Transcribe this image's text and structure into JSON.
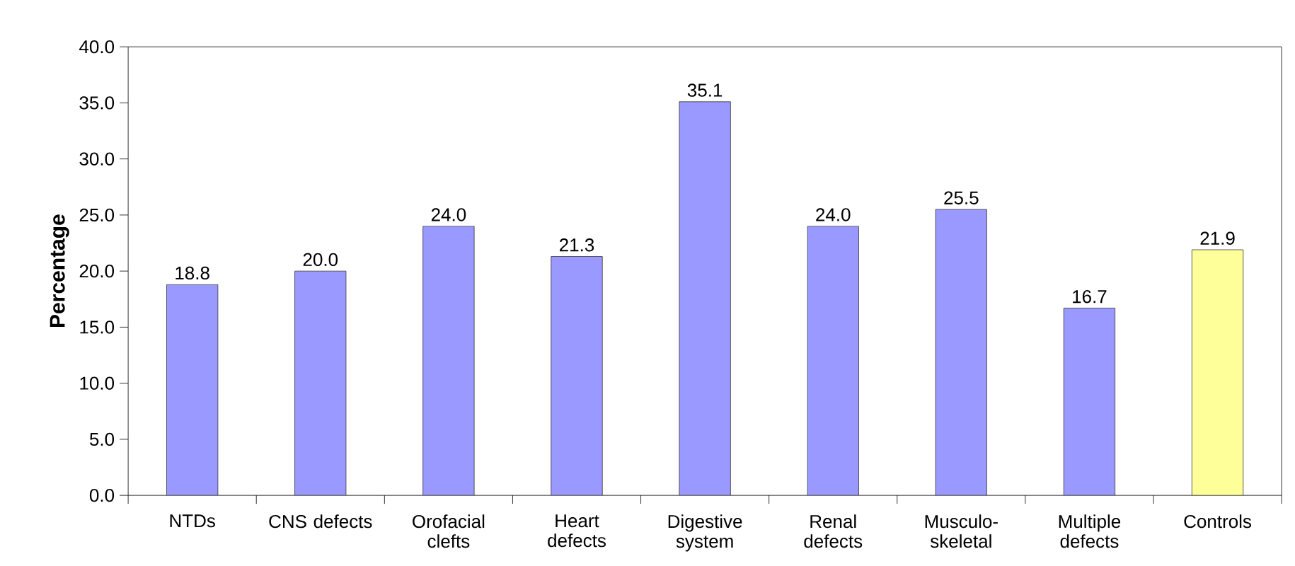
{
  "chart_data": {
    "type": "bar",
    "ylabel": "Percentage",
    "categories": [
      "NTDs",
      "CNS defects",
      "Orofacial clefts",
      "Heart defects",
      "Digestive system",
      "Renal defects",
      "Musculo-skeletal",
      "Multiple defects",
      "Controls"
    ],
    "values": [
      18.8,
      20.0,
      24.0,
      21.3,
      35.1,
      24.0,
      25.5,
      16.7,
      21.9
    ],
    "colors": [
      "#9999ff",
      "#9999ff",
      "#9999ff",
      "#9999ff",
      "#9999ff",
      "#9999ff",
      "#9999ff",
      "#9999ff",
      "#ffff99"
    ],
    "ylim": [
      0,
      40
    ],
    "yticks": [
      {
        "value": 0,
        "label": "0.0"
      },
      {
        "value": 5,
        "label": "5.0"
      },
      {
        "value": 10,
        "label": "10.0"
      },
      {
        "value": 15,
        "label": "15.0"
      },
      {
        "value": 20,
        "label": "20.0"
      },
      {
        "value": 25,
        "label": "25.0"
      },
      {
        "value": 30,
        "label": "30.0"
      },
      {
        "value": 35,
        "label": "35.0"
      },
      {
        "value": 40,
        "label": "40.0"
      }
    ],
    "value_labels": [
      "18.8",
      "20.0",
      "24.0",
      "21.3",
      "35.1",
      "24.0",
      "25.5",
      "16.7",
      "21.9"
    ]
  }
}
